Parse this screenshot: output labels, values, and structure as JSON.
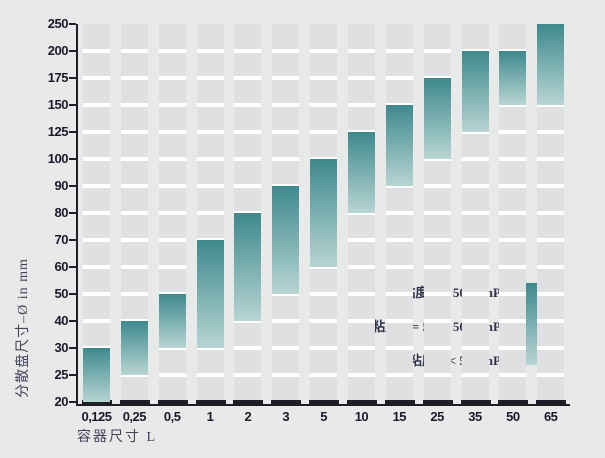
{
  "chart_data": {
    "type": "bar",
    "subtype": "floating-range-bars",
    "title": "",
    "xlabel": "容器尺寸 L",
    "ylabel": "分散盘尺寸–Ø in mm",
    "categories": [
      "0,125",
      "0,25",
      "0,5",
      "1",
      "2",
      "3",
      "5",
      "10",
      "15",
      "25",
      "35",
      "50",
      "65"
    ],
    "y_ticks": [
      20,
      25,
      30,
      40,
      50,
      60,
      70,
      80,
      90,
      100,
      125,
      150,
      175,
      200,
      250
    ],
    "y_scale": "ordinal-equal-spacing",
    "ylim": [
      20,
      250
    ],
    "grid": "horizontal-white-lines",
    "series": [
      {
        "name": "disc-diameter-range",
        "ranges": [
          [
            20,
            30
          ],
          [
            25,
            40
          ],
          [
            30,
            50
          ],
          [
            30,
            70
          ],
          [
            40,
            80
          ],
          [
            50,
            90
          ],
          [
            60,
            100
          ],
          [
            80,
            125
          ],
          [
            90,
            150
          ],
          [
            100,
            175
          ],
          [
            125,
            200
          ],
          [
            150,
            200
          ],
          [
            150,
            250
          ]
        ]
      }
    ],
    "legend": {
      "position": "inside-bottom-right",
      "items": [
        {
          "label": "高粘度 μ > 5000 mPs",
          "meaning": "high-viscosity-top-of-gradient"
        },
        {
          "label": "中粘度 μ = 500 - 5000 mPs",
          "meaning": "medium-viscosity-middle-of-gradient"
        },
        {
          "label": "低粘度 μ < 500 mPs",
          "meaning": "low-viscosity-bottom-of-gradient"
        }
      ]
    },
    "colors": {
      "background": "#e8e9e9",
      "plot_cell": "#dfe0e1",
      "gridline": "#ffffff",
      "bar_gradient_top": "#3e898d",
      "bar_gradient_bottom": "#b7d5d3",
      "axis": "#1e1e29",
      "tick_text": "#1a1a2b",
      "label_text": "#42425a"
    }
  }
}
